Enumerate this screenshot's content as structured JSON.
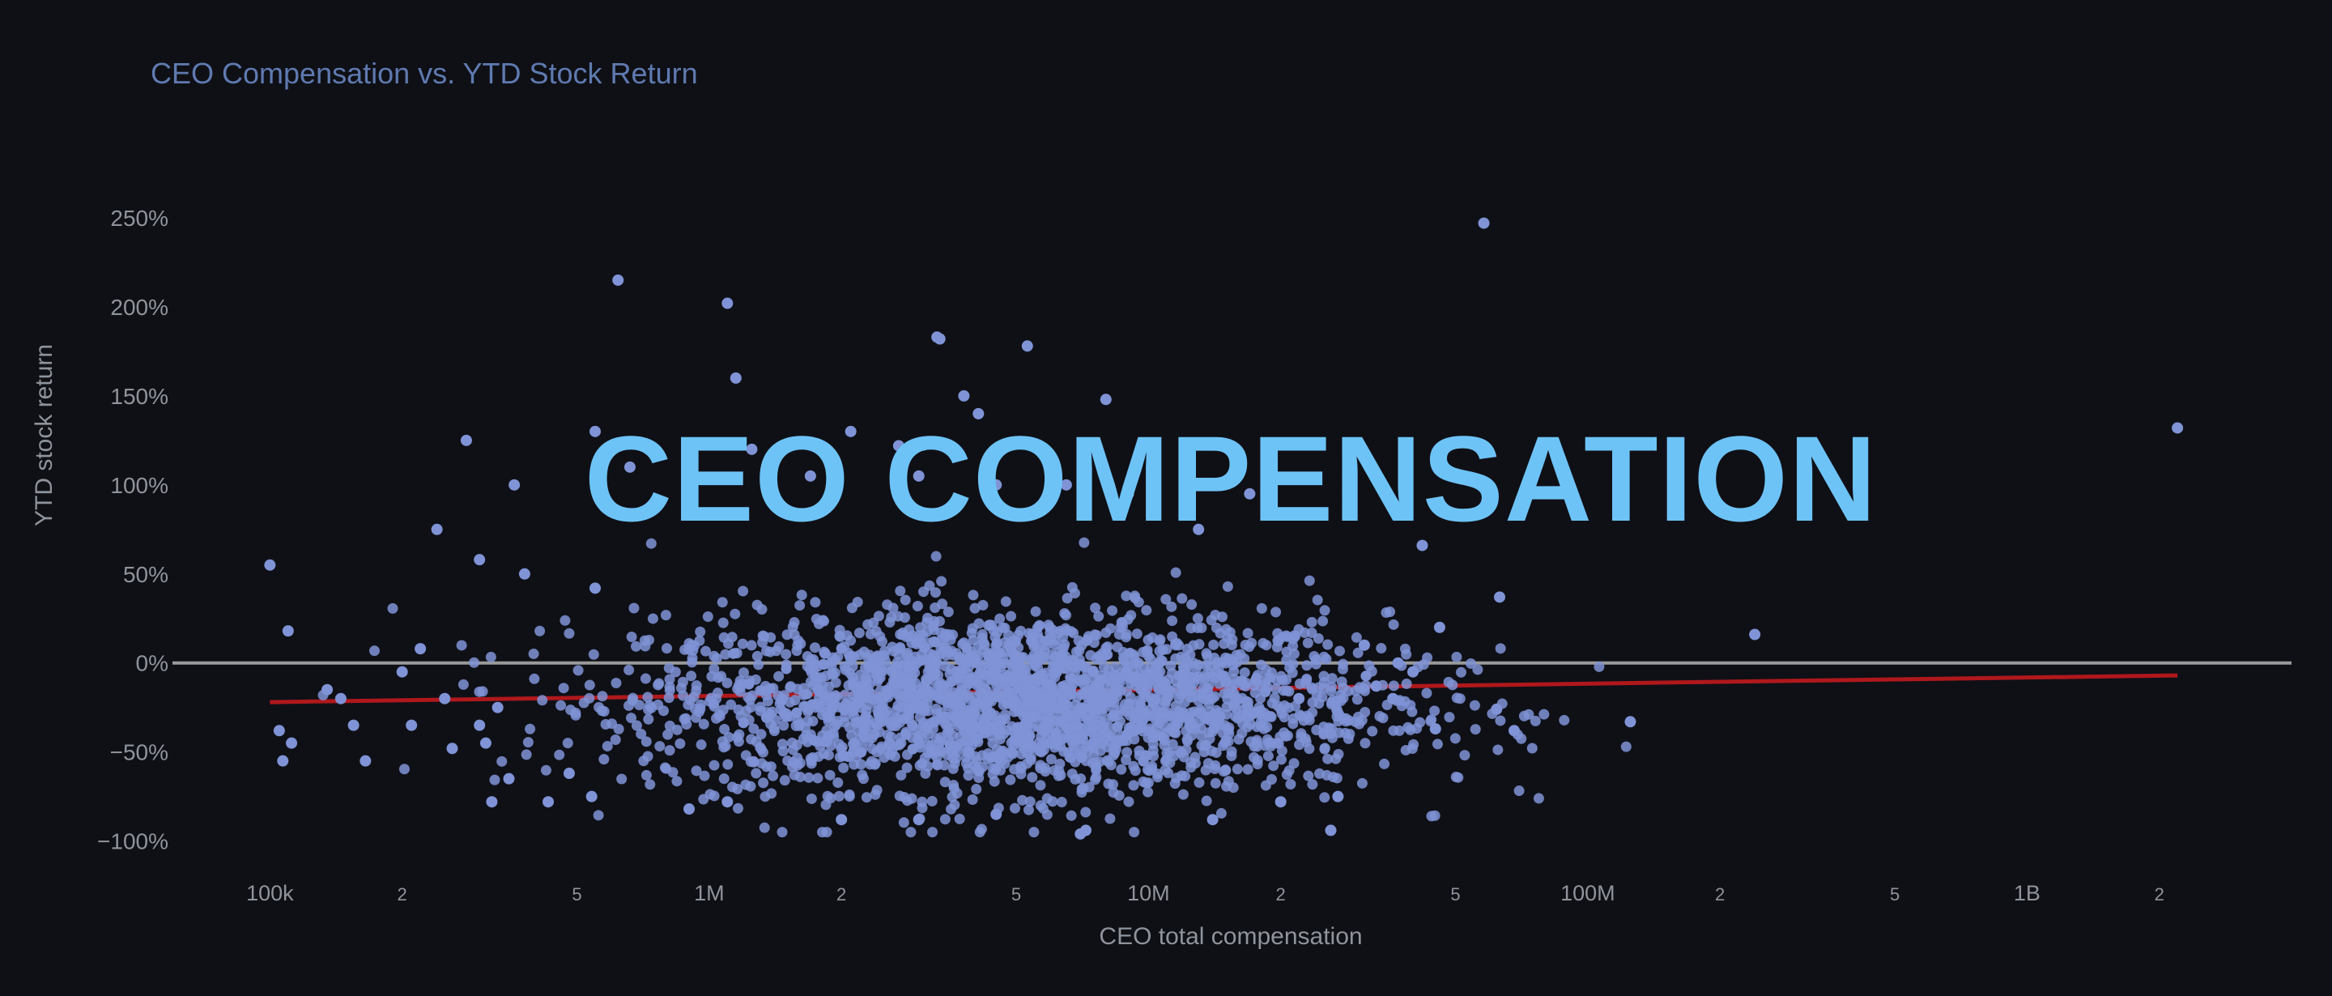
{
  "chart_data": {
    "type": "scatter",
    "title": "CEO Compensation vs. YTD Stock Return",
    "overlay_text": "CEO COMPENSATION",
    "xlabel": "CEO total compensation",
    "ylabel": "YTD stock return",
    "x_scale": "log",
    "xlim": [
      60000,
      4000000000
    ],
    "ylim": [
      -1.12,
      2.7
    ],
    "y_ticks": [
      {
        "v": 2.5,
        "label": "250%"
      },
      {
        "v": 2.0,
        "label": "200%"
      },
      {
        "v": 1.5,
        "label": "150%"
      },
      {
        "v": 1.0,
        "label": "100%"
      },
      {
        "v": 0.5,
        "label": "50%"
      },
      {
        "v": 0.0,
        "label": "0%"
      },
      {
        "v": -0.5,
        "label": "−50%"
      },
      {
        "v": -1.0,
        "label": "−100%"
      }
    ],
    "x_ticks": [
      {
        "v": 100000,
        "label": "100k"
      },
      {
        "v": 200000,
        "label": "2"
      },
      {
        "v": 500000,
        "label": "5"
      },
      {
        "v": 1000000,
        "label": "1M"
      },
      {
        "v": 2000000,
        "label": "2"
      },
      {
        "v": 5000000,
        "label": "5"
      },
      {
        "v": 10000000,
        "label": "10M"
      },
      {
        "v": 20000000,
        "label": "2"
      },
      {
        "v": 50000000,
        "label": "5"
      },
      {
        "v": 100000000,
        "label": "100M"
      },
      {
        "v": 200000000,
        "label": "2"
      },
      {
        "v": 500000000,
        "label": "5"
      },
      {
        "v": 1000000000,
        "label": "1B"
      },
      {
        "v": 2000000000,
        "label": "2"
      }
    ],
    "zero_line": true,
    "trend_line": {
      "x": [
        100000,
        2200000000
      ],
      "y": [
        -0.22,
        -0.07
      ],
      "color": "#b0181c"
    },
    "series": [
      {
        "color": "#7f93d6",
        "points": [
          [
            620000,
            2.15
          ],
          [
            1100000,
            2.02
          ],
          [
            1150000,
            1.6
          ],
          [
            3300000,
            1.83
          ],
          [
            3350000,
            1.82
          ],
          [
            5300000,
            1.78
          ],
          [
            8000000,
            1.48
          ],
          [
            3800000,
            1.5
          ],
          [
            4100000,
            1.4
          ],
          [
            2700000,
            1.22
          ],
          [
            1250000,
            1.2
          ],
          [
            2100000,
            1.3
          ],
          [
            550000,
            1.3
          ],
          [
            280000,
            1.25
          ],
          [
            660000,
            1.1
          ],
          [
            360000,
            1.0
          ],
          [
            240000,
            0.75
          ],
          [
            1700000,
            1.05
          ],
          [
            3000000,
            1.05
          ],
          [
            4500000,
            1.0
          ],
          [
            6500000,
            1.0
          ],
          [
            9000000,
            0.95
          ],
          [
            13000000,
            0.75
          ],
          [
            17000000,
            0.95
          ],
          [
            100000,
            0.55
          ],
          [
            110000,
            0.18
          ],
          [
            300000,
            0.58
          ],
          [
            380000,
            0.5
          ],
          [
            550000,
            0.42
          ],
          [
            58000000,
            2.47
          ],
          [
            2200000000,
            1.32
          ],
          [
            240000000,
            0.16
          ],
          [
            125000000,
            -0.33
          ],
          [
            42000000,
            0.66
          ],
          [
            46000000,
            0.2
          ],
          [
            63000000,
            0.37
          ],
          [
            68000000,
            -0.38
          ],
          [
            45000000,
            -0.37
          ],
          [
            36000000,
            -0.2
          ],
          [
            62000000,
            -0.26
          ],
          [
            37000000,
            0.0
          ],
          [
            27000000,
            -0.75
          ],
          [
            26000000,
            -0.94
          ],
          [
            22000000,
            -0.2
          ],
          [
            31000000,
            0.1
          ],
          [
            33000000,
            -0.13
          ],
          [
            40000000,
            -0.05
          ],
          [
            105000,
            -0.38
          ],
          [
            112000,
            -0.45
          ],
          [
            107000,
            -0.55
          ],
          [
            135000,
            -0.15
          ],
          [
            145000,
            -0.2
          ],
          [
            155000,
            -0.35
          ],
          [
            165000,
            -0.55
          ],
          [
            200000,
            -0.05
          ],
          [
            210000,
            -0.35
          ],
          [
            220000,
            0.08
          ],
          [
            250000,
            -0.2
          ],
          [
            260000,
            -0.48
          ],
          [
            300000,
            -0.35
          ],
          [
            310000,
            -0.45
          ],
          [
            320000,
            -0.78
          ],
          [
            330000,
            -0.25
          ],
          [
            350000,
            -0.65
          ],
          [
            430000,
            -0.78
          ],
          [
            480000,
            -0.62
          ],
          [
            540000,
            -0.75
          ],
          [
            900000,
            -0.82
          ],
          [
            1100000,
            -0.78
          ],
          [
            2000000,
            -0.88
          ],
          [
            3000000,
            -0.88
          ],
          [
            4500000,
            -0.85
          ],
          [
            7000000,
            -0.96
          ],
          [
            7200000,
            -0.94
          ],
          [
            14000000,
            -0.88
          ],
          [
            20000000,
            -0.78
          ]
        ]
      }
    ]
  }
}
